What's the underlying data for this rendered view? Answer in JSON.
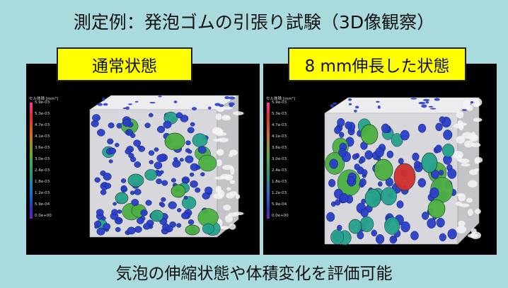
{
  "title": "測定例：発泡ゴムの引張り試験（3D像観察）",
  "caption": "気泡の伸縮状態や体積変化を評価可能",
  "panels": [
    {
      "label": "通常状態"
    },
    {
      "label": "8 mm伸長した状態"
    }
  ],
  "legend": {
    "title": "セル体積 [mm³]",
    "ticks": [
      "5.9e-03",
      "5.3e-03",
      "4.7e-03",
      "4.1e-03",
      "3.6e-03",
      "3.0e-03",
      "2.4e-03",
      "1.8e-03",
      "1.2e-03",
      "5.9e-04",
      "0.0e+00"
    ]
  },
  "colors": {
    "background": "#a9dadd",
    "label_box": "#ffff00",
    "foam": "#d8d8dc",
    "small_cell": "#2a3fc8",
    "mid_cell": "#25a28a",
    "large_cell": "#4cb040",
    "largest_cell": "#d03030"
  }
}
